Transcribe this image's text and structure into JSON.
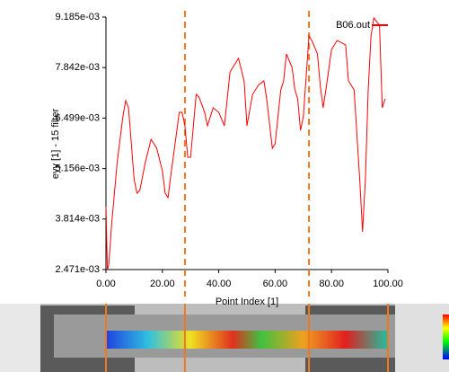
{
  "chart_data": {
    "type": "line",
    "y_label": "eyy [1] - 15 filter",
    "x_label": "Point Index [1]",
    "xlim": [
      0,
      100
    ],
    "xticks": [
      {
        "value": 0,
        "label": "0.00"
      },
      {
        "value": 20,
        "label": "20.00"
      },
      {
        "value": 40,
        "label": "40.00"
      },
      {
        "value": 60,
        "label": "60.00"
      },
      {
        "value": 80,
        "label": "80.00"
      },
      {
        "value": 100,
        "label": "100.00"
      }
    ],
    "ylim": [
      0.002471,
      0.009185
    ],
    "yticks": [
      {
        "value": 0.002471,
        "label": "2.471e-03"
      },
      {
        "value": 0.003814,
        "label": "3.814e-03"
      },
      {
        "value": 0.005156,
        "label": "5.156e-03"
      },
      {
        "value": 0.006499,
        "label": "6.499e-03"
      },
      {
        "value": 0.007842,
        "label": "7.842e-03"
      },
      {
        "value": 0.009185,
        "label": "9.185e-03"
      }
    ],
    "markers": [
      28,
      72
    ],
    "marker_color": "#f07820",
    "series": [
      {
        "name": "B06.out",
        "color": "#ff0000",
        "x": [
          0,
          0.5,
          1,
          2,
          4,
          6,
          7,
          8,
          9,
          10,
          11,
          12,
          14,
          16,
          18,
          20,
          21,
          22,
          23,
          26,
          27,
          28,
          29,
          30,
          31,
          32,
          33,
          35,
          36,
          38,
          40,
          42,
          44,
          47,
          49,
          50,
          52,
          54,
          56,
          57,
          59,
          60,
          62,
          63,
          64,
          66,
          67,
          68,
          69,
          70,
          72,
          73,
          75,
          76,
          77,
          78,
          80,
          82,
          85,
          86,
          88,
          90,
          91,
          92,
          93,
          94,
          95,
          97,
          98,
          99
        ],
        "values": [
          0.004144,
          0.002471,
          0.00259,
          0.003666,
          0.005338,
          0.006533,
          0.006963,
          0.006772,
          0.005816,
          0.00486,
          0.004502,
          0.004574,
          0.005338,
          0.005935,
          0.005697,
          0.005099,
          0.004502,
          0.004382,
          0.00498,
          0.006652,
          0.006652,
          0.006294,
          0.005458,
          0.005458,
          0.006294,
          0.00713,
          0.007058,
          0.006652,
          0.006294,
          0.006772,
          0.006652,
          0.006294,
          0.007727,
          0.008086,
          0.007489,
          0.006294,
          0.00713,
          0.007369,
          0.007489,
          0.007011,
          0.005697,
          0.005816,
          0.00725,
          0.007489,
          0.008205,
          0.007847,
          0.00725,
          0.007011,
          0.006174,
          0.006533,
          0.008683,
          0.008564,
          0.008205,
          0.007369,
          0.006772,
          0.00725,
          0.008325,
          0.008564,
          0.008444,
          0.007489,
          0.00725,
          0.00486,
          0.003475,
          0.00486,
          0.00725,
          0.008683,
          0.009161,
          0.00897,
          0.006772,
          0.007011
        ]
      }
    ]
  }
}
